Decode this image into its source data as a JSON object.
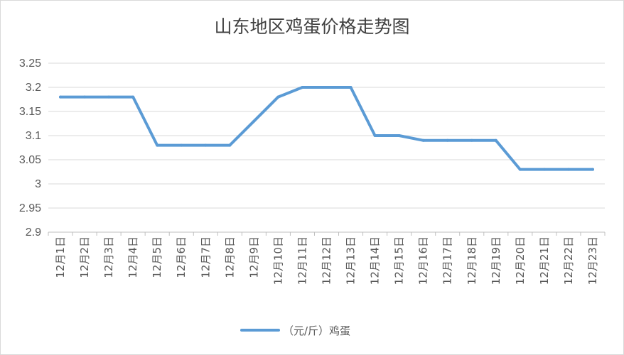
{
  "chart_data": {
    "type": "line",
    "title": "山东地区鸡蛋价格走势图",
    "xlabel": "",
    "ylabel": "",
    "ylim": [
      2.9,
      3.25
    ],
    "yticks": [
      "3.25",
      "3.2",
      "3.15",
      "3.1",
      "3.05",
      "3",
      "2.95",
      "2.9"
    ],
    "grid": true,
    "legend_position": "bottom",
    "categories": [
      "12月1日",
      "12月2日",
      "12月3日",
      "12月4日",
      "12月5日",
      "12月6日",
      "12月7日",
      "12月8日",
      "12月9日",
      "12月10日",
      "12月11日",
      "12月12日",
      "12月13日",
      "12月14日",
      "12月15日",
      "12月16日",
      "12月17日",
      "12月18日",
      "12月19日",
      "12月20日",
      "12月21日",
      "12月22日",
      "12月23日"
    ],
    "series": [
      {
        "name": "（元/斤）鸡蛋",
        "color": "#5b9bd5",
        "values": [
          3.18,
          3.18,
          3.18,
          3.18,
          3.08,
          3.08,
          3.08,
          3.08,
          3.13,
          3.18,
          3.2,
          3.2,
          3.2,
          3.1,
          3.1,
          3.09,
          3.09,
          3.09,
          3.09,
          3.03,
          3.03,
          3.03,
          3.03
        ]
      }
    ]
  }
}
